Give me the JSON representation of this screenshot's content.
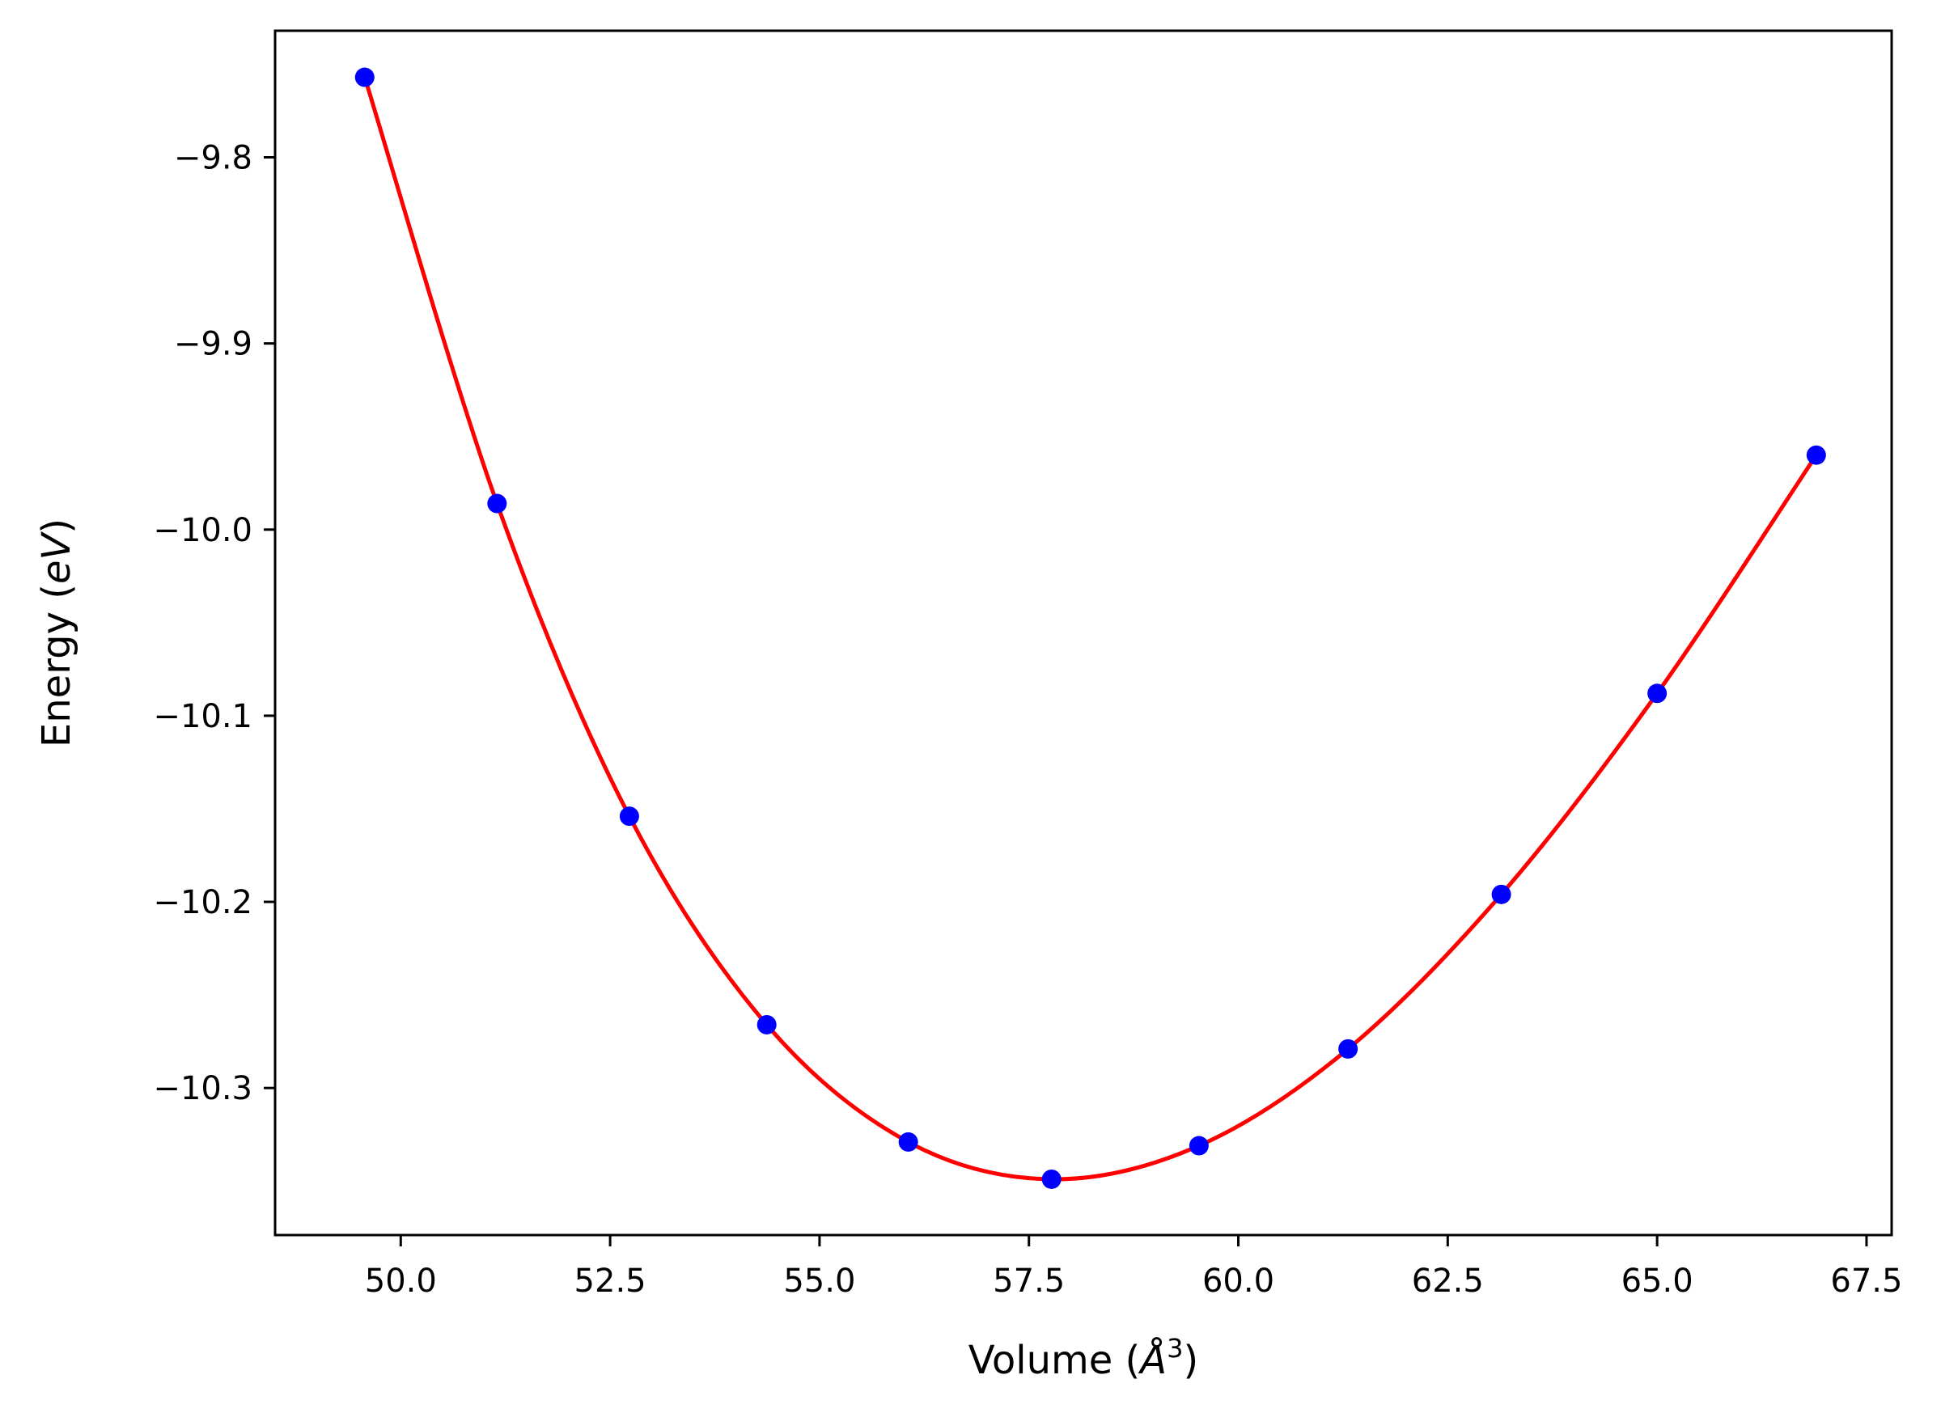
{
  "chart_data": {
    "type": "line",
    "title": "",
    "xlabel": "Volume (",
    "xlabel_symbol": "Å",
    "xlabel_superscript": "3",
    "xlabel_close": ")",
    "ylabel": "Energy (",
    "ylabel_unit": "eV",
    "ylabel_close": ")",
    "xlim": [
      48.5,
      67.8
    ],
    "ylim": [
      -10.379,
      -9.732
    ],
    "xticks": [
      50.0,
      52.5,
      55.0,
      57.5,
      60.0,
      62.5,
      65.0,
      67.5
    ],
    "xtick_labels": [
      "50.0",
      "52.5",
      "55.0",
      "57.5",
      "60.0",
      "62.5",
      "65.0",
      "67.5"
    ],
    "yticks": [
      -9.8,
      -9.9,
      -10.0,
      -10.1,
      -10.2,
      -10.3
    ],
    "ytick_labels": [
      "−9.8",
      "−9.9",
      "−10.0",
      "−10.1",
      "−10.2",
      "−10.3"
    ],
    "grid": false,
    "legend": "none",
    "series": [
      {
        "kind": "points",
        "color": "#0000ff",
        "x": [
          49.57,
          51.15,
          52.73,
          54.37,
          56.06,
          57.77,
          59.53,
          61.31,
          63.14,
          65.0,
          66.9
        ],
        "y": [
          -9.757,
          -9.986,
          -10.154,
          -10.266,
          -10.329,
          -10.349,
          -10.331,
          -10.279,
          -10.196,
          -10.088,
          -9.96
        ]
      },
      {
        "kind": "fit-curve",
        "color": "#ff0000",
        "x": [
          49.57,
          51.15,
          52.73,
          54.37,
          56.06,
          57.77,
          59.53,
          61.31,
          63.14,
          65.0,
          66.9
        ],
        "y": [
          -9.757,
          -9.986,
          -10.154,
          -10.266,
          -10.329,
          -10.349,
          -10.331,
          -10.279,
          -10.196,
          -10.088,
          -9.96
        ]
      }
    ]
  }
}
